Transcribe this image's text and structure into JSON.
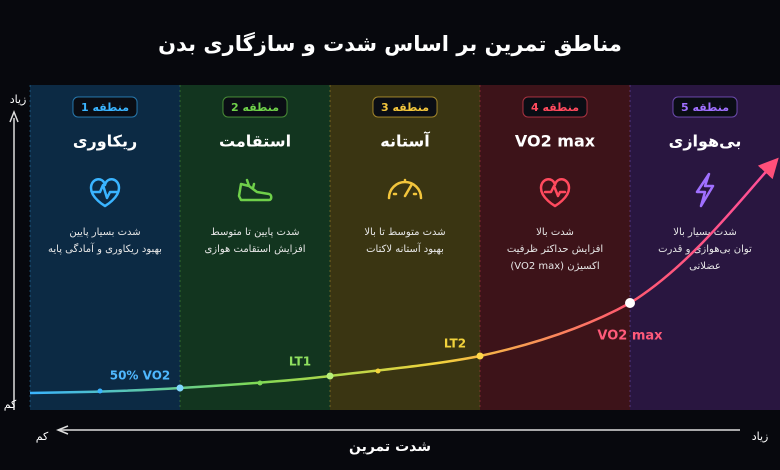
{
  "header": {
    "title": "مناطق تمرین بر اساس شدت و سازگاری بدن"
  },
  "zones": [
    {
      "badge": "منطقه 1",
      "name": "ریکاوری",
      "lines": [
        "شدت بسیار پایین",
        "بهبود ریکاوری و آمادگی پایه"
      ]
    },
    {
      "badge": "منطقه 2",
      "name": "استقامت",
      "lines": [
        "شدت پایین تا متوسط",
        "افزایش استقامت هوازی"
      ]
    },
    {
      "badge": "منطقه 3",
      "name": "آستانه",
      "lines": [
        "شدت متوسط تا بالا",
        "بهبود آستانه لاکتات"
      ]
    },
    {
      "badge": "منطقه 4",
      "name": "VO2 max",
      "lines": [
        "شدت بالا",
        "افزایش حداکثر ظرفیت",
        "اکسیژن (VO2 max)"
      ]
    },
    {
      "badge": "منطقه 5",
      "name": "بی‌هوازی",
      "lines": [
        "شدت بسیار بالا",
        "توان بی‌هوازی و قدرت",
        "عضلانی"
      ]
    }
  ],
  "curve_labels": [
    "50% VO2",
    "LT1",
    "LT2",
    "VO2 max"
  ],
  "axes": {
    "y_high": "زیاد",
    "y_low": "کم",
    "x_low": "کم",
    "x_high": "زیاد",
    "x_title": "شدت تمرین"
  }
}
